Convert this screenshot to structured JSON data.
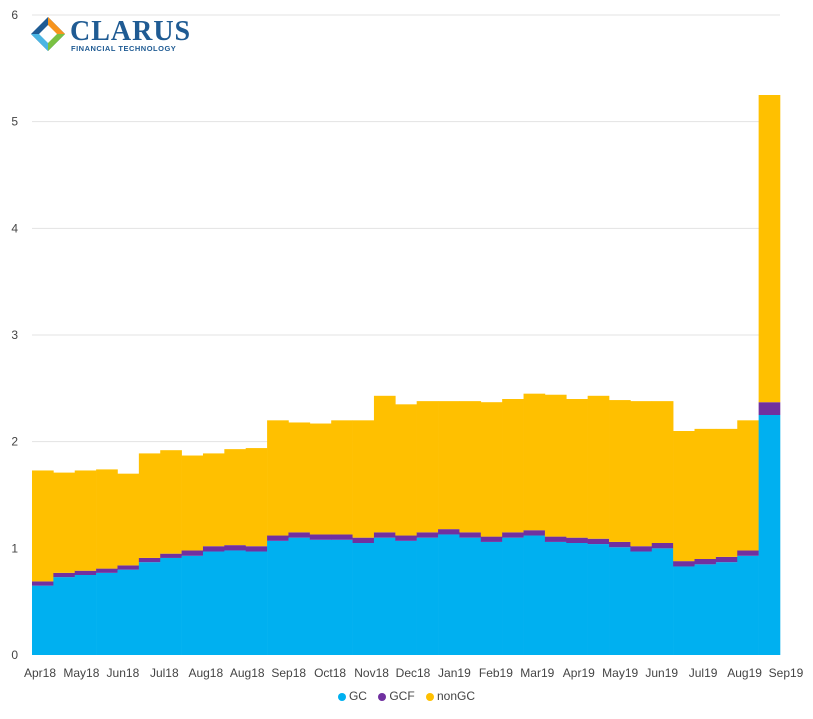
{
  "logo": {
    "name": "CLARUS",
    "subtitle": "FINANCIAL TECHNOLOGY",
    "colors": [
      "#f7941d",
      "#1f5b93",
      "#4ab5e3",
      "#7ac143"
    ]
  },
  "legend": [
    {
      "label": "GC",
      "color": "#00b0f0"
    },
    {
      "label": "GCF",
      "color": "#7030a0"
    },
    {
      "label": "nonGC",
      "color": "#ffc000"
    }
  ],
  "chart_data": {
    "type": "bar",
    "stacked": true,
    "title": "",
    "xlabel": "",
    "ylabel": "",
    "ylim": [
      0,
      6
    ],
    "yticks": [
      0,
      1,
      2,
      3,
      4,
      5,
      6
    ],
    "grid": true,
    "legend_position": "bottom",
    "x_tick_labels": [
      "Apr18",
      "May18",
      "Jun18",
      "Jul18",
      "Aug18",
      "Aug18",
      "Sep18",
      "Oct18",
      "Nov18",
      "Dec18",
      "Jan19",
      "Feb19",
      "Mar19",
      "Apr19",
      "May19",
      "Jun19",
      "Jul19",
      "Aug19",
      "Sep19"
    ],
    "series": [
      {
        "name": "GC",
        "color": "#00b0f0",
        "values": [
          0.65,
          0.73,
          0.75,
          0.77,
          0.8,
          0.87,
          0.91,
          0.93,
          0.97,
          0.98,
          0.97,
          1.07,
          1.1,
          1.08,
          1.08,
          1.05,
          1.1,
          1.07,
          1.1,
          1.13,
          1.1,
          1.06,
          1.1,
          1.12,
          1.06,
          1.05,
          1.04,
          1.01,
          0.97,
          1.0,
          0.83,
          0.85,
          0.87,
          0.93,
          2.25
        ]
      },
      {
        "name": "GCF",
        "color": "#7030a0",
        "values": [
          0.04,
          0.04,
          0.04,
          0.04,
          0.04,
          0.04,
          0.04,
          0.05,
          0.05,
          0.05,
          0.05,
          0.05,
          0.05,
          0.05,
          0.05,
          0.05,
          0.05,
          0.05,
          0.05,
          0.05,
          0.05,
          0.05,
          0.05,
          0.05,
          0.05,
          0.05,
          0.05,
          0.05,
          0.05,
          0.05,
          0.05,
          0.05,
          0.05,
          0.05,
          0.12
        ]
      },
      {
        "name": "nonGC",
        "color": "#ffc000",
        "values": [
          1.04,
          0.94,
          0.94,
          0.93,
          0.86,
          0.98,
          0.97,
          0.89,
          0.87,
          0.9,
          0.92,
          1.08,
          1.03,
          1.04,
          1.07,
          1.1,
          1.28,
          1.23,
          1.23,
          1.2,
          1.23,
          1.26,
          1.25,
          1.28,
          1.33,
          1.3,
          1.34,
          1.33,
          1.36,
          1.33,
          1.22,
          1.22,
          1.2,
          1.22,
          2.88
        ]
      }
    ]
  }
}
